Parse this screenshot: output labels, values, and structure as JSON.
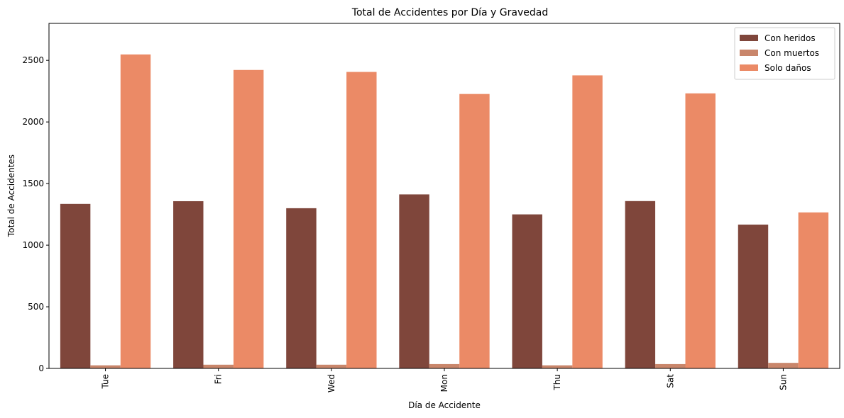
{
  "chart_data": {
    "type": "bar",
    "title": "Total de Accidentes por Día y Gravedad",
    "xlabel": "Día de Accidente",
    "ylabel": "Total de Accidentes",
    "categories": [
      "Tue",
      "Fri",
      "Wed",
      "Mon",
      "Thu",
      "Sat",
      "Sun"
    ],
    "series": [
      {
        "name": "Con heridos",
        "color": "#7f463b",
        "values": [
          1335,
          1357,
          1300,
          1412,
          1250,
          1358,
          1167
        ]
      },
      {
        "name": "Con muertos",
        "color": "#c9866b",
        "values": [
          25,
          30,
          30,
          35,
          25,
          35,
          45
        ]
      },
      {
        "name": "Solo daños",
        "color": "#eb8a66",
        "values": [
          2548,
          2422,
          2406,
          2227,
          2378,
          2232,
          1266
        ]
      }
    ],
    "yticks": [
      0,
      500,
      1000,
      1500,
      2000,
      2500
    ],
    "ylim": [
      0,
      2800
    ],
    "legend_position": "top-right",
    "grid": false
  }
}
